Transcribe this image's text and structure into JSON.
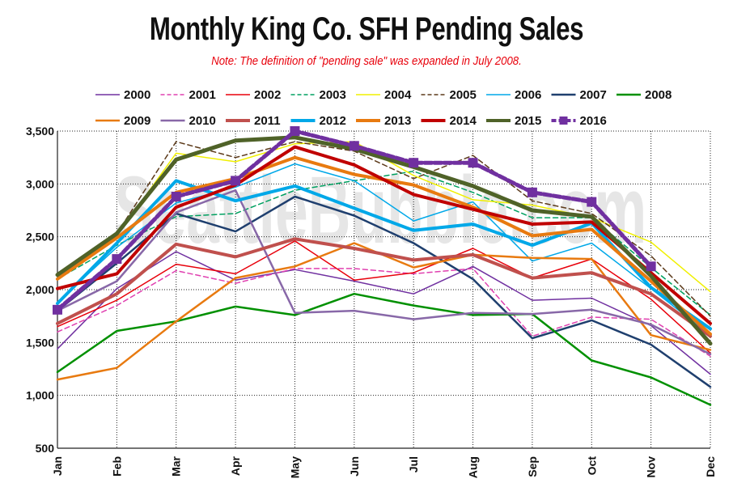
{
  "chart_data": {
    "type": "line",
    "title": "Monthly King Co. SFH Pending Sales",
    "subtitle": "Note: The definition of \"pending sale\" was expanded in July 2008.",
    "watermark": "SeattleBubble.com",
    "xlabel": "",
    "ylabel": "",
    "categories": [
      "Jan",
      "Feb",
      "Mar",
      "Apr",
      "May",
      "Jun",
      "Jul",
      "Aug",
      "Sep",
      "Oct",
      "Nov",
      "Dec"
    ],
    "ylim": [
      500,
      3500
    ],
    "yticks": [
      500,
      1000,
      1500,
      2000,
      2500,
      3000,
      3500
    ],
    "ytick_labels": [
      "500",
      "1,000",
      "1,500",
      "2,000",
      "2,500",
      "3,000",
      "3,500"
    ],
    "grid": true,
    "legend_position": "top",
    "series": [
      {
        "name": "2000",
        "color": "#7030a0",
        "dash": "solid",
        "width": 1.5,
        "values": [
          1440,
          2010,
          2360,
          2090,
          2190,
          2080,
          1960,
          2220,
          1900,
          1920,
          1660,
          1200
        ]
      },
      {
        "name": "2001",
        "color": "#e040b0",
        "dash": "dashed",
        "width": 1.5,
        "values": [
          1600,
          1850,
          2180,
          2060,
          2200,
          2200,
          2150,
          2200,
          1560,
          1740,
          1720,
          1370
        ]
      },
      {
        "name": "2002",
        "color": "#e8000b",
        "dash": "solid",
        "width": 1.5,
        "values": [
          1650,
          1900,
          2240,
          2150,
          2460,
          2090,
          2160,
          2390,
          2110,
          2290,
          1910,
          1400
        ]
      },
      {
        "name": "2003",
        "color": "#00a060",
        "dash": "dashed",
        "width": 1.5,
        "values": [
          2100,
          2420,
          2690,
          2720,
          2940,
          3030,
          3120,
          2920,
          2680,
          2680,
          2210,
          1760
        ]
      },
      {
        "name": "2004",
        "color": "#f0f000",
        "dash": "solid",
        "width": 1.5,
        "values": [
          2100,
          2510,
          3290,
          3210,
          3380,
          3400,
          3080,
          2850,
          2800,
          2680,
          2450,
          1980
        ]
      },
      {
        "name": "2005",
        "color": "#5c3a1a",
        "dash": "dashed",
        "width": 1.5,
        "values": [
          2130,
          2530,
          3400,
          3250,
          3400,
          3310,
          3050,
          3270,
          2840,
          2720,
          2320,
          1750
        ]
      },
      {
        "name": "2006",
        "color": "#00a8e8",
        "dash": "solid",
        "width": 1.5,
        "values": [
          1880,
          2400,
          2820,
          2970,
          3190,
          3030,
          2650,
          2830,
          2270,
          2440,
          2010,
          1570
        ]
      },
      {
        "name": "2007",
        "color": "#1f3f6e",
        "dash": "solid",
        "width": 2.5,
        "values": [
          1800,
          2250,
          2720,
          2550,
          2880,
          2700,
          2440,
          2100,
          1540,
          1710,
          1480,
          1080
        ]
      },
      {
        "name": "2008",
        "color": "#009000",
        "dash": "solid",
        "width": 2.5,
        "values": [
          1220,
          1610,
          1700,
          1840,
          1760,
          1960,
          1850,
          1760,
          1770,
          1330,
          1170,
          910
        ]
      },
      {
        "name": "2009",
        "color": "#e87a10",
        "dash": "solid",
        "width": 2.5,
        "values": [
          1150,
          1260,
          1700,
          2110,
          2220,
          2440,
          2210,
          2330,
          2300,
          2290,
          1570,
          1430
        ]
      },
      {
        "name": "2010",
        "color": "#8868a8",
        "dash": "solid",
        "width": 2.5,
        "values": [
          1800,
          2080,
          2730,
          2940,
          1780,
          1800,
          1720,
          1780,
          1770,
          1810,
          1670,
          1390
        ]
      },
      {
        "name": "2011",
        "color": "#c0504d",
        "dash": "solid",
        "width": 4,
        "values": [
          1680,
          1960,
          2430,
          2310,
          2480,
          2390,
          2280,
          2330,
          2110,
          2160,
          1960,
          1560
        ]
      },
      {
        "name": "2012",
        "color": "#00a8e8",
        "dash": "solid",
        "width": 4,
        "values": [
          1870,
          2440,
          3030,
          2840,
          2980,
          2770,
          2560,
          2620,
          2420,
          2630,
          2020,
          1630
        ]
      },
      {
        "name": "2013",
        "color": "#e87a10",
        "dash": "solid",
        "width": 4,
        "values": [
          2100,
          2490,
          2920,
          3050,
          3250,
          3090,
          2990,
          2780,
          2510,
          2570,
          2080,
          1580
        ]
      },
      {
        "name": "2014",
        "color": "#c00000",
        "dash": "solid",
        "width": 4,
        "values": [
          2010,
          2150,
          2780,
          2990,
          3350,
          3180,
          2900,
          2760,
          2620,
          2640,
          2160,
          1680
        ]
      },
      {
        "name": "2015",
        "color": "#4f6228",
        "dash": "solid",
        "width": 5,
        "values": [
          2140,
          2530,
          3230,
          3410,
          3440,
          3330,
          3160,
          2980,
          2750,
          2690,
          2130,
          1490
        ]
      },
      {
        "name": "2016",
        "color": "#7030a0",
        "dash": "dotted",
        "width": 5,
        "marker": "square",
        "values": [
          1810,
          2290,
          2880,
          3030,
          3500,
          3360,
          3200,
          3200,
          2920,
          2830,
          2220,
          null
        ]
      }
    ]
  }
}
